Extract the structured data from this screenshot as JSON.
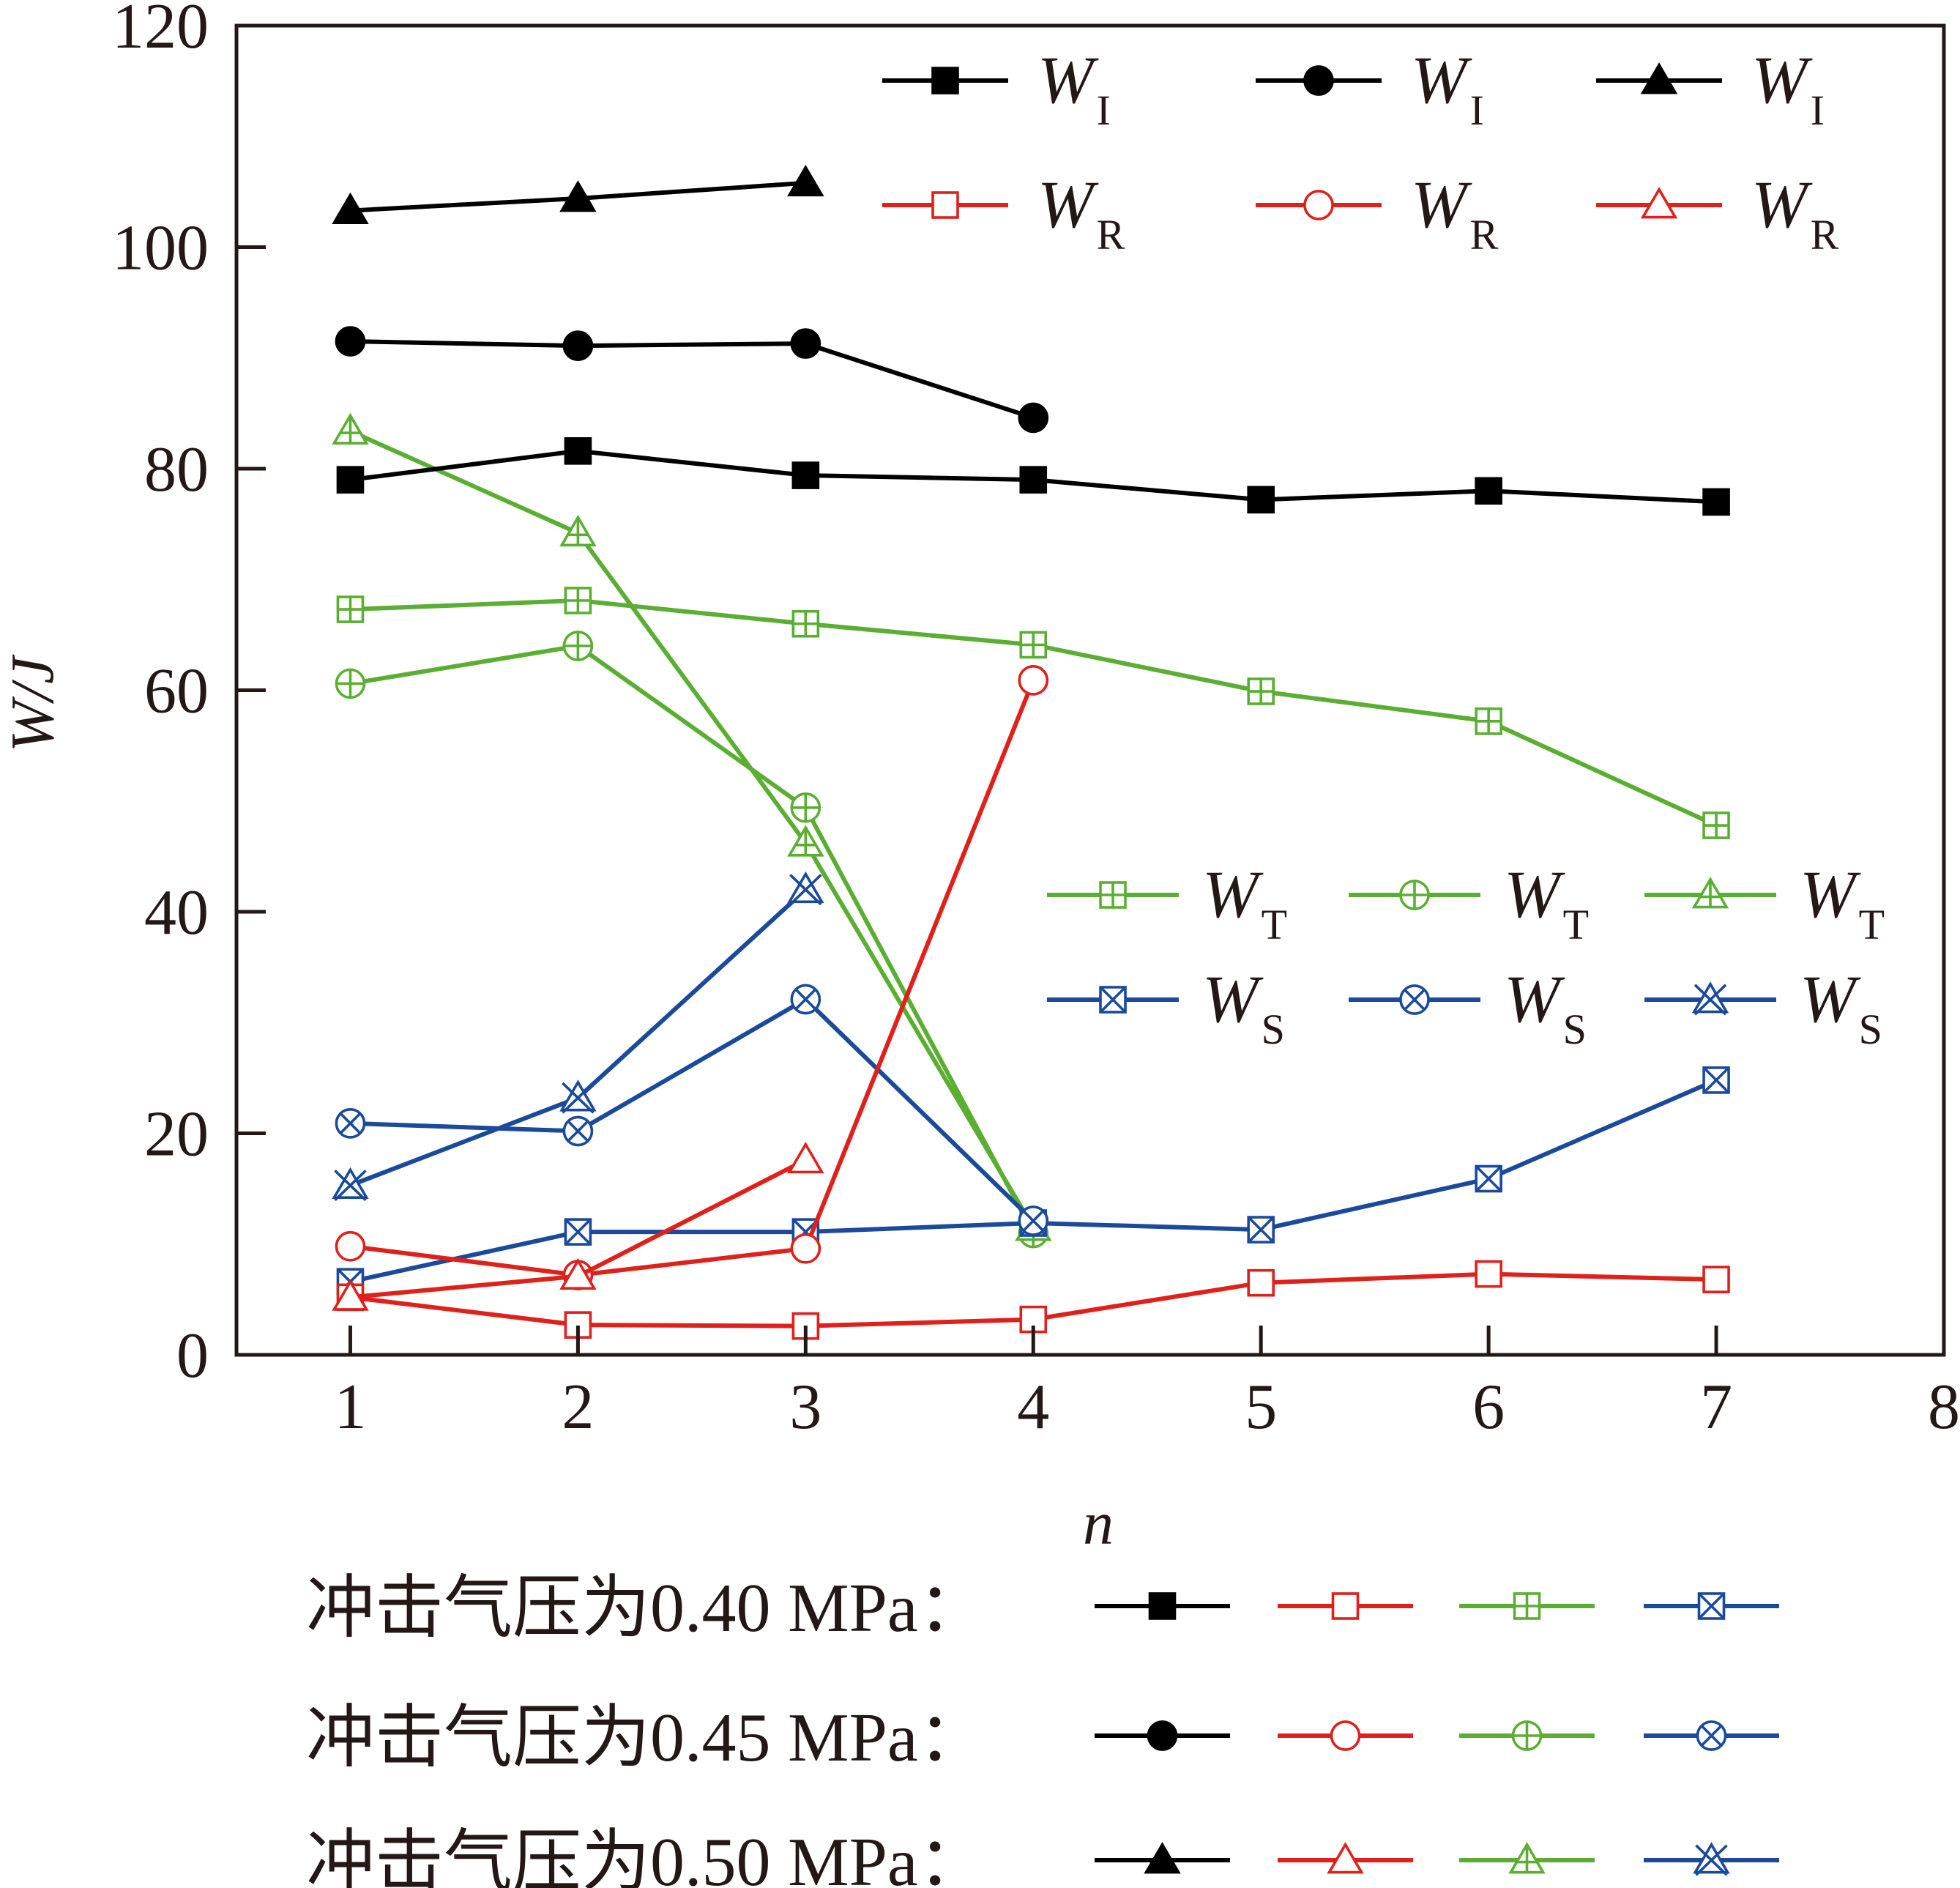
{
  "chart_data": {
    "type": "line",
    "xlabel": "n",
    "ylabel": "W/J",
    "xlim": [
      0.5,
      8
    ],
    "ylim": [
      0,
      120
    ],
    "x_ticks": [
      "1",
      "2",
      "3",
      "4",
      "5",
      "6",
      "7",
      "8"
    ],
    "y_ticks": [
      "0",
      "20",
      "40",
      "60",
      "80",
      "100",
      "120"
    ],
    "grid": false,
    "series": [
      {
        "group": "0.40",
        "kind": "I",
        "color": "#000000",
        "marker": "square-filled",
        "x": [
          1,
          2,
          3,
          4,
          5,
          6,
          7
        ],
        "y": [
          79,
          81.6,
          79.4,
          79,
          77.2,
          78,
          77
        ]
      },
      {
        "group": "0.40",
        "kind": "R",
        "color": "#e0201b",
        "marker": "square-open",
        "x": [
          1,
          2,
          3,
          4,
          5,
          6,
          7
        ],
        "y": [
          5.2,
          2.7,
          2.6,
          3.2,
          6.5,
          7.3,
          6.8
        ]
      },
      {
        "group": "0.40",
        "kind": "T",
        "color": "#5aaf32",
        "marker": "square-plus",
        "x": [
          1,
          2,
          3,
          4,
          5,
          6,
          7
        ],
        "y": [
          67.3,
          68.1,
          66,
          64.1,
          59.9,
          57.2,
          47.8
        ]
      },
      {
        "group": "0.40",
        "kind": "S",
        "color": "#1a4a9c",
        "marker": "square-x",
        "x": [
          1,
          2,
          3,
          4,
          5,
          6,
          7
        ],
        "y": [
          6.6,
          11.1,
          11.1,
          11.9,
          11.3,
          15.9,
          24.8
        ]
      },
      {
        "group": "0.45",
        "kind": "I",
        "color": "#000000",
        "marker": "circle-filled",
        "x": [
          1,
          2,
          3,
          4
        ],
        "y": [
          91.5,
          91.1,
          91.3,
          84.6
        ]
      },
      {
        "group": "0.45",
        "kind": "R",
        "color": "#e0201b",
        "marker": "circle-open",
        "x": [
          1,
          2,
          3,
          4
        ],
        "y": [
          9.8,
          7.2,
          9.6,
          60.9
        ]
      },
      {
        "group": "0.45",
        "kind": "T",
        "color": "#5aaf32",
        "marker": "circle-plus",
        "x": [
          1,
          2,
          3,
          4
        ],
        "y": [
          60.6,
          64,
          49.4,
          11
        ]
      },
      {
        "group": "0.45",
        "kind": "S",
        "color": "#1a4a9c",
        "marker": "circle-x",
        "x": [
          1,
          2,
          3,
          4
        ],
        "y": [
          20.9,
          20.2,
          32.1,
          12.1
        ]
      },
      {
        "group": "0.50",
        "kind": "I",
        "color": "#000000",
        "marker": "triangle-filled",
        "x": [
          1,
          2,
          3
        ],
        "y": [
          103.3,
          104.4,
          105.8
        ]
      },
      {
        "group": "0.50",
        "kind": "R",
        "color": "#e0201b",
        "marker": "triangle-open",
        "x": [
          1,
          2,
          3
        ],
        "y": [
          5.2,
          7.1,
          17.6
        ]
      },
      {
        "group": "0.50",
        "kind": "T",
        "color": "#5aaf32",
        "marker": "triangle-plus",
        "x": [
          1,
          2,
          3,
          4
        ],
        "y": [
          83.4,
          74.2,
          46.2,
          11.5
        ]
      },
      {
        "group": "0.50",
        "kind": "S",
        "color": "#1a4a9c",
        "marker": "triangle-x",
        "x": [
          1,
          2,
          3
        ],
        "y": [
          15.3,
          23.2,
          42
        ]
      }
    ],
    "inner_legends": [
      {
        "rows": [
          {
            "kind": "I",
            "label_main": "W",
            "label_sub": "I"
          },
          {
            "kind": "R",
            "label_main": "W",
            "label_sub": "R"
          }
        ],
        "placement": "top"
      },
      {
        "rows": [
          {
            "kind": "T",
            "label_main": "W",
            "label_sub": "T"
          },
          {
            "kind": "S",
            "label_main": "W",
            "label_sub": "S"
          }
        ],
        "placement": "middle-right"
      }
    ],
    "bottom_legend": [
      {
        "group": "0.40",
        "label": "冲击气压为0.40 MPa："
      },
      {
        "group": "0.45",
        "label": "冲击气压为0.45 MPa："
      },
      {
        "group": "0.50",
        "label": "冲击气压为0.50 MPa："
      }
    ]
  }
}
